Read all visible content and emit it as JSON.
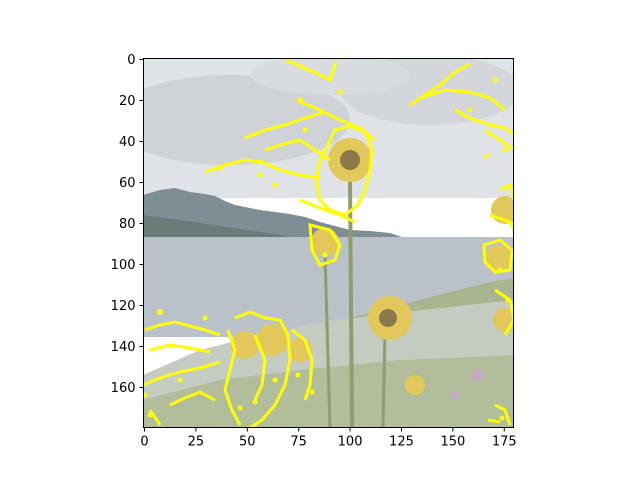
{
  "chart_data": {
    "type": "heatmap",
    "title": "",
    "xlabel": "",
    "ylabel": "",
    "image_shape": [
      180,
      180
    ],
    "xlim": [
      0,
      179
    ],
    "ylim": [
      179,
      0
    ],
    "y_axis_inverted": true,
    "x_ticks": [
      0,
      25,
      50,
      75,
      100,
      125,
      150,
      175
    ],
    "y_ticks": [
      0,
      20,
      40,
      60,
      80,
      100,
      120,
      140,
      160
    ],
    "x_tick_labels": [
      "0",
      "25",
      "50",
      "75",
      "100",
      "125",
      "150",
      "175"
    ],
    "y_tick_labels": [
      "0",
      "20",
      "40",
      "60",
      "80",
      "100",
      "120",
      "140",
      "160"
    ],
    "grid": false,
    "legend": "none",
    "background_image": "washed-out landscape photo: cloudy sky, mountain range, lake, wild sunflowers in foreground",
    "overlay_color": "#ffff00",
    "overlay_regions": [
      {
        "name": "sky-cloud-edges-top",
        "x": [
          70,
          95
        ],
        "y": [
          0,
          10
        ]
      },
      {
        "name": "sky-cloud-edges-mid",
        "x": [
          35,
          115
        ],
        "y": [
          10,
          75
        ]
      },
      {
        "name": "sky-cloud-edges-right",
        "x": [
          130,
          179
        ],
        "y": [
          0,
          45
        ]
      },
      {
        "name": "sunflower-main",
        "x": [
          88,
          115
        ],
        "y": [
          30,
          85
        ]
      },
      {
        "name": "sunflower-left-small",
        "x": [
          82,
          96
        ],
        "y": [
          80,
          102
        ]
      },
      {
        "name": "sunflowers-right-edge",
        "x": [
          165,
          179
        ],
        "y": [
          60,
          135
        ]
      },
      {
        "name": "foreground-flowers-left",
        "x": [
          0,
          85
        ],
        "y": [
          120,
          178
        ]
      },
      {
        "name": "foreground-flowers-bottom-right",
        "x": [
          160,
          179
        ],
        "y": [
          165,
          178
        ]
      }
    ]
  },
  "colors": {
    "figure_background": "#ffffff",
    "axis": "#000000",
    "sky": "#dfe2e6",
    "cloud_dark": "#c7ccd2",
    "mountain": "#7f8d94",
    "mountain_dark": "#6c7a7a",
    "lake": "#b9c2c9",
    "grass": "#a8b58f",
    "brush": "#c4cbc0",
    "sunflower": "#e2c85a",
    "stem": "#8e9d6a",
    "overlay": "#ffff00"
  }
}
